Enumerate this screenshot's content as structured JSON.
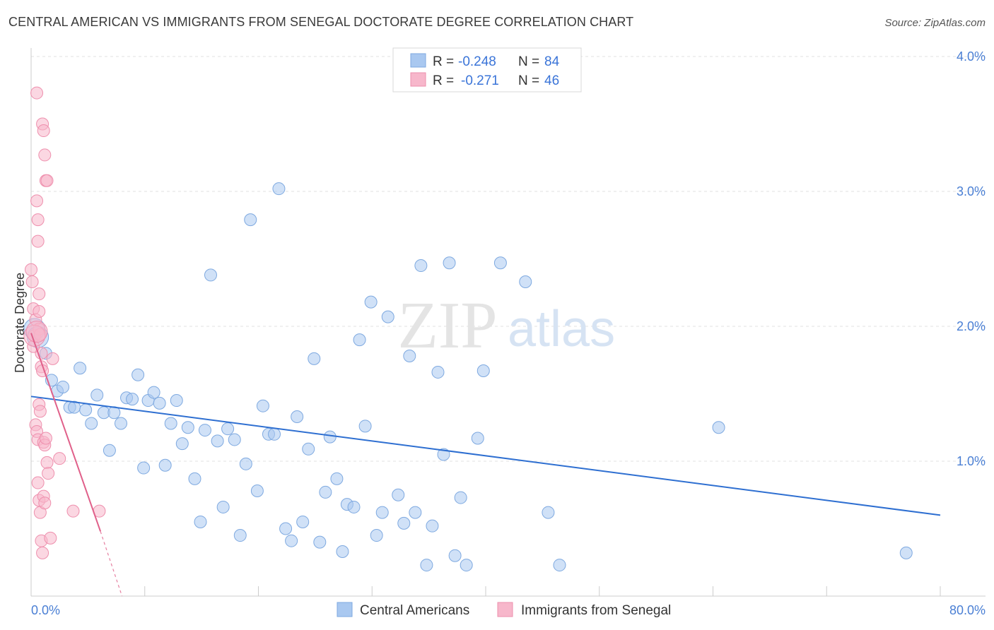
{
  "title": "CENTRAL AMERICAN VS IMMIGRANTS FROM SENEGAL DOCTORATE DEGREE CORRELATION CHART",
  "source": "Source: ZipAtlas.com",
  "watermark": {
    "part1": "ZIP",
    "part2": "atlas"
  },
  "colors": {
    "blue_fill": "#a9c8f0",
    "blue_stroke": "#7ea9e0",
    "blue_line": "#2e6fd1",
    "pink_fill": "#f7b7cb",
    "pink_stroke": "#ee8fad",
    "pink_line": "#e0608a",
    "tick_label": "#4a7fd4"
  },
  "legend": {
    "r_label": "R =",
    "n_label": "N =",
    "rows": [
      {
        "r": "-0.248",
        "n": "84",
        "color": "#a9c8f0"
      },
      {
        "r": "-0.271",
        "n": "46",
        "color": "#f7b7cb"
      }
    ]
  },
  "bottom_legend": [
    {
      "label": "Central Americans",
      "color": "#a9c8f0"
    },
    {
      "label": "Immigrants from Senegal",
      "color": "#f7b7cb"
    }
  ],
  "chart_data": {
    "type": "scatter",
    "title": "CENTRAL AMERICAN VS IMMIGRANTS FROM SENEGAL DOCTORATE DEGREE CORRELATION CHART",
    "xlabel": "",
    "ylabel": "Doctorate Degree",
    "xlim": [
      0,
      80
    ],
    "ylim": [
      0,
      4.2
    ],
    "x_tick_labels": [
      "0.0%",
      "80.0%"
    ],
    "y_ticks": [
      1.0,
      2.0,
      3.0,
      4.0
    ],
    "y_tick_labels": [
      "1.0%",
      "2.0%",
      "3.0%",
      "4.0%"
    ],
    "grid": true,
    "series": [
      {
        "name": "Central Americans",
        "color": "#a9c8f0",
        "trend": {
          "x": [
            0,
            80
          ],
          "y": [
            1.48,
            0.6
          ]
        },
        "points": [
          [
            0.3,
            1.98
          ],
          [
            0.6,
            1.92
          ],
          [
            1.3,
            1.8
          ],
          [
            1.8,
            1.6
          ],
          [
            2.3,
            1.52
          ],
          [
            2.8,
            1.55
          ],
          [
            3.4,
            1.4
          ],
          [
            3.8,
            1.4
          ],
          [
            4.3,
            1.69
          ],
          [
            4.8,
            1.38
          ],
          [
            5.3,
            1.28
          ],
          [
            5.8,
            1.49
          ],
          [
            6.4,
            1.36
          ],
          [
            6.9,
            1.08
          ],
          [
            7.3,
            1.36
          ],
          [
            7.9,
            1.28
          ],
          [
            8.4,
            1.47
          ],
          [
            8.9,
            1.46
          ],
          [
            9.4,
            1.64
          ],
          [
            9.9,
            0.95
          ],
          [
            10.3,
            1.45
          ],
          [
            10.8,
            1.51
          ],
          [
            11.3,
            1.43
          ],
          [
            11.8,
            0.97
          ],
          [
            12.3,
            1.28
          ],
          [
            12.8,
            1.45
          ],
          [
            13.3,
            1.13
          ],
          [
            13.8,
            1.25
          ],
          [
            14.4,
            0.87
          ],
          [
            14.9,
            0.55
          ],
          [
            15.3,
            1.23
          ],
          [
            15.8,
            2.38
          ],
          [
            16.4,
            1.15
          ],
          [
            16.9,
            0.66
          ],
          [
            17.3,
            1.24
          ],
          [
            17.9,
            1.16
          ],
          [
            18.4,
            0.45
          ],
          [
            18.9,
            0.98
          ],
          [
            19.3,
            2.79
          ],
          [
            19.9,
            0.78
          ],
          [
            20.4,
            1.41
          ],
          [
            20.9,
            1.2
          ],
          [
            21.4,
            1.2
          ],
          [
            21.8,
            3.02
          ],
          [
            22.4,
            0.5
          ],
          [
            22.9,
            0.41
          ],
          [
            23.4,
            1.33
          ],
          [
            23.9,
            0.55
          ],
          [
            24.4,
            1.09
          ],
          [
            24.9,
            1.76
          ],
          [
            25.4,
            0.4
          ],
          [
            25.9,
            0.77
          ],
          [
            26.3,
            1.18
          ],
          [
            26.9,
            0.87
          ],
          [
            27.4,
            0.33
          ],
          [
            27.8,
            0.68
          ],
          [
            28.4,
            0.66
          ],
          [
            28.9,
            1.9
          ],
          [
            29.4,
            1.26
          ],
          [
            29.9,
            2.18
          ],
          [
            30.4,
            0.45
          ],
          [
            30.9,
            0.62
          ],
          [
            31.4,
            2.07
          ],
          [
            32.3,
            0.75
          ],
          [
            32.8,
            0.54
          ],
          [
            33.3,
            1.78
          ],
          [
            33.8,
            0.62
          ],
          [
            34.3,
            2.45
          ],
          [
            34.8,
            0.23
          ],
          [
            35.3,
            0.52
          ],
          [
            35.8,
            1.66
          ],
          [
            36.3,
            1.05
          ],
          [
            36.8,
            2.47
          ],
          [
            37.3,
            0.3
          ],
          [
            37.8,
            0.73
          ],
          [
            38.3,
            0.23
          ],
          [
            39.3,
            1.17
          ],
          [
            39.8,
            1.67
          ],
          [
            41.3,
            2.47
          ],
          [
            43.5,
            2.33
          ],
          [
            45.5,
            0.62
          ],
          [
            46.5,
            0.23
          ],
          [
            60.5,
            1.25
          ],
          [
            77.0,
            0.32
          ]
        ]
      },
      {
        "name": "Immigrants from Senegal",
        "color": "#f7b7cb",
        "trend": {
          "x": [
            0,
            6.1
          ],
          "y": [
            1.95,
            0.48
          ]
        },
        "trend_dashed": {
          "x": [
            6.1,
            8.0
          ],
          "y": [
            0.48,
            0.0
          ]
        },
        "points": [
          [
            0.0,
            2.42
          ],
          [
            0.1,
            2.33
          ],
          [
            0.2,
            2.13
          ],
          [
            0.3,
            1.93
          ],
          [
            0.4,
            2.05
          ],
          [
            0.5,
            3.73
          ],
          [
            0.5,
            2.93
          ],
          [
            0.6,
            2.79
          ],
          [
            0.6,
            2.63
          ],
          [
            0.7,
            2.24
          ],
          [
            0.7,
            2.11
          ],
          [
            0.7,
            1.98
          ],
          [
            0.8,
            1.94
          ],
          [
            0.9,
            1.8
          ],
          [
            1.0,
            3.5
          ],
          [
            1.1,
            3.45
          ],
          [
            1.2,
            3.27
          ],
          [
            1.3,
            3.08
          ],
          [
            1.4,
            3.08
          ],
          [
            0.2,
            1.85
          ],
          [
            0.4,
            1.27
          ],
          [
            0.5,
            1.22
          ],
          [
            0.6,
            1.16
          ],
          [
            0.7,
            1.42
          ],
          [
            0.8,
            1.37
          ],
          [
            0.9,
            1.7
          ],
          [
            1.0,
            1.67
          ],
          [
            1.1,
            1.14
          ],
          [
            1.2,
            1.12
          ],
          [
            1.3,
            1.17
          ],
          [
            1.4,
            0.99
          ],
          [
            1.5,
            0.91
          ],
          [
            0.6,
            0.84
          ],
          [
            0.7,
            0.71
          ],
          [
            0.8,
            0.62
          ],
          [
            0.9,
            0.41
          ],
          [
            1.0,
            0.32
          ],
          [
            1.1,
            0.74
          ],
          [
            1.2,
            0.69
          ],
          [
            1.7,
            0.43
          ],
          [
            1.9,
            1.76
          ],
          [
            2.5,
            1.02
          ],
          [
            3.7,
            0.63
          ],
          [
            6.0,
            0.63
          ],
          [
            0.3,
            1.93
          ],
          [
            0.5,
            1.96
          ]
        ]
      }
    ]
  }
}
